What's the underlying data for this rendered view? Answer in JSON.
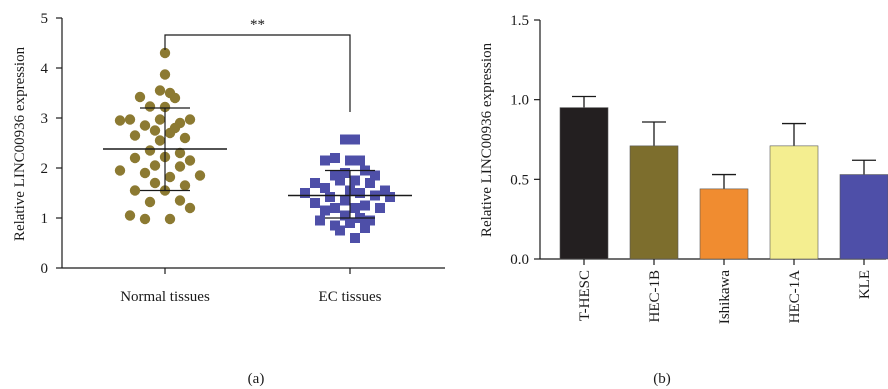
{
  "chart_data": [
    {
      "type": "scatter",
      "panel_label": "(a)",
      "ylabel": "Relative LINC00936 expression",
      "ylim": [
        0,
        5
      ],
      "yticks": [
        "0",
        "1",
        "2",
        "3",
        "4",
        "5"
      ],
      "categories": [
        "Normal tissues",
        "EC tissues"
      ],
      "significance": "**",
      "series": [
        {
          "category": "Normal tissues",
          "color": "#8c7a32",
          "marker": "circle",
          "mean": 2.38,
          "sd": [
            1.55,
            3.2
          ],
          "points": [
            [
              0.0,
              4.3
            ],
            [
              0.0,
              3.87
            ],
            [
              -0.05,
              3.55
            ],
            [
              0.05,
              3.5
            ],
            [
              -0.25,
              3.42
            ],
            [
              0.1,
              3.4
            ],
            [
              -0.15,
              3.23
            ],
            [
              0.0,
              3.22
            ],
            [
              -0.35,
              2.97
            ],
            [
              0.25,
              2.97
            ],
            [
              -0.45,
              2.95
            ],
            [
              -0.05,
              2.97
            ],
            [
              0.15,
              2.9
            ],
            [
              -0.2,
              2.85
            ],
            [
              0.1,
              2.8
            ],
            [
              -0.1,
              2.75
            ],
            [
              0.05,
              2.7
            ],
            [
              -0.3,
              2.65
            ],
            [
              0.2,
              2.6
            ],
            [
              -0.05,
              2.55
            ],
            [
              -0.15,
              2.35
            ],
            [
              0.15,
              2.3
            ],
            [
              -0.3,
              2.2
            ],
            [
              0.0,
              2.22
            ],
            [
              0.25,
              2.15
            ],
            [
              -0.1,
              2.05
            ],
            [
              0.15,
              2.03
            ],
            [
              -0.45,
              1.95
            ],
            [
              -0.2,
              1.9
            ],
            [
              0.35,
              1.85
            ],
            [
              0.05,
              1.82
            ],
            [
              -0.1,
              1.7
            ],
            [
              0.2,
              1.65
            ],
            [
              -0.3,
              1.55
            ],
            [
              0.0,
              1.55
            ],
            [
              0.15,
              1.35
            ],
            [
              -0.15,
              1.32
            ],
            [
              0.25,
              1.2
            ],
            [
              -0.35,
              1.05
            ],
            [
              0.05,
              0.98
            ],
            [
              -0.2,
              0.98
            ]
          ]
        },
        {
          "category": "EC tissues",
          "color": "#4e4fa8",
          "marker": "square",
          "mean": 1.45,
          "sd": [
            1.0,
            1.95
          ],
          "points": [
            [
              -0.05,
              2.57
            ],
            [
              0.05,
              2.57
            ],
            [
              -0.15,
              2.2
            ],
            [
              0.0,
              2.15
            ],
            [
              0.1,
              2.15
            ],
            [
              -0.25,
              2.15
            ],
            [
              0.15,
              1.95
            ],
            [
              -0.05,
              1.9
            ],
            [
              -0.15,
              1.85
            ],
            [
              0.25,
              1.85
            ],
            [
              -0.1,
              1.75
            ],
            [
              0.05,
              1.75
            ],
            [
              -0.35,
              1.7
            ],
            [
              0.2,
              1.7
            ],
            [
              -0.25,
              1.6
            ],
            [
              0.35,
              1.55
            ],
            [
              0.0,
              1.55
            ],
            [
              -0.45,
              1.5
            ],
            [
              0.1,
              1.5
            ],
            [
              0.25,
              1.45
            ],
            [
              -0.2,
              1.42
            ],
            [
              0.4,
              1.42
            ],
            [
              -0.05,
              1.35
            ],
            [
              -0.35,
              1.3
            ],
            [
              0.15,
              1.25
            ],
            [
              0.05,
              1.2
            ],
            [
              -0.15,
              1.2
            ],
            [
              0.3,
              1.2
            ],
            [
              -0.25,
              1.15
            ],
            [
              -0.05,
              1.05
            ],
            [
              0.1,
              1.0
            ],
            [
              -0.3,
              0.95
            ],
            [
              0.2,
              0.95
            ],
            [
              0.0,
              0.9
            ],
            [
              -0.15,
              0.85
            ],
            [
              0.15,
              0.8
            ],
            [
              -0.1,
              0.75
            ],
            [
              0.05,
              0.6
            ]
          ]
        }
      ]
    },
    {
      "type": "bar",
      "panel_label": "(b)",
      "ylabel": "Relative LINC00936 expression",
      "ylim": [
        0,
        1.5
      ],
      "yticks": [
        "0.0",
        "0.5",
        "1.0",
        "1.5"
      ],
      "categories": [
        "T-HESC",
        "HEC-1B",
        "Ishikawa",
        "HEC-1A",
        "KLE"
      ],
      "values": [
        0.95,
        0.71,
        0.44,
        0.71,
        0.53
      ],
      "errors": [
        0.07,
        0.15,
        0.09,
        0.14,
        0.09
      ],
      "colors": [
        "#231f20",
        "#7d6e2d",
        "#f08c30",
        "#f4ee90",
        "#4e4fa8"
      ]
    }
  ]
}
